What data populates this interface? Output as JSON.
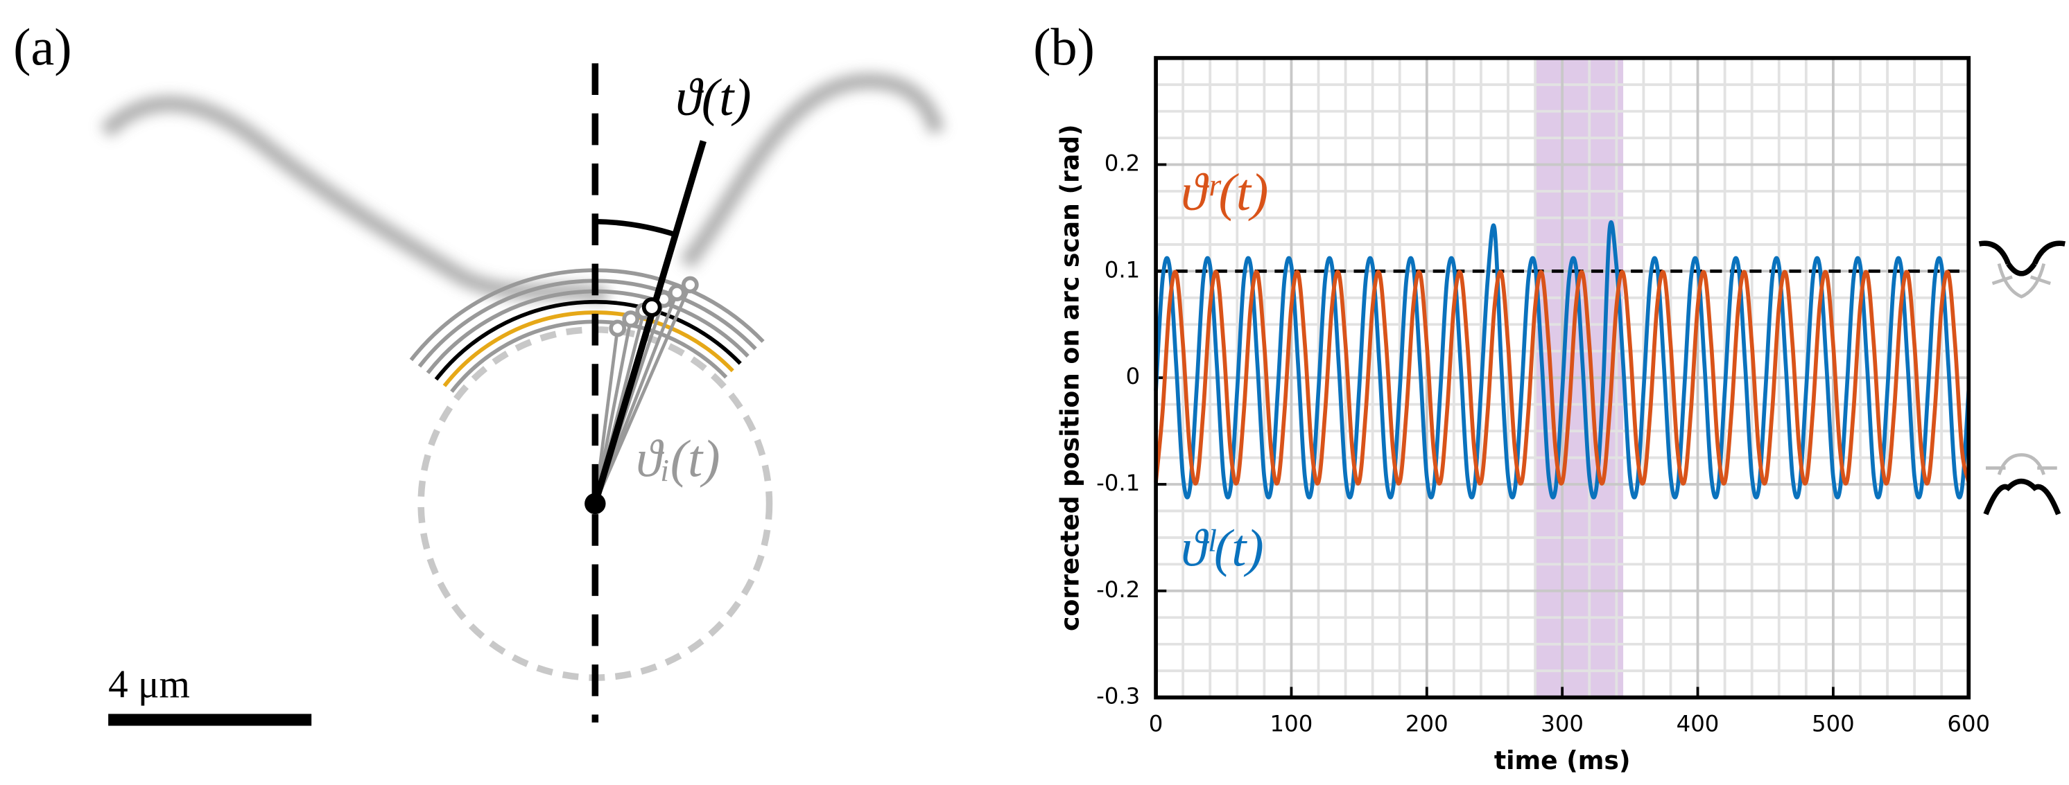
{
  "panel_a": {
    "label": "(a)",
    "angle_label": "ϑ(t)",
    "segment_label": "ϑᵢ(t)",
    "scale_bar": "4 μm"
  },
  "chart_data": {
    "type": "line",
    "panel_label": "(b)",
    "x_label": "time (ms)",
    "y_label": "corrected position on arc scan (rad)",
    "xlim": [
      0,
      600
    ],
    "xticks": [
      0,
      100,
      200,
      300,
      400,
      500,
      600
    ],
    "ylim": [
      -0.3,
      0.3
    ],
    "yticks": [
      -0.3,
      -0.2,
      -0.1,
      0,
      0.1,
      0.2
    ],
    "grid": true,
    "reference_line": 0.1,
    "highlight": [
      280,
      345
    ],
    "highlight_color": "#b07cc6",
    "x": [
      0,
      5,
      10,
      15,
      20,
      25,
      30,
      35,
      40,
      45,
      50,
      55,
      60,
      65,
      70,
      75,
      80,
      85,
      90,
      95,
      100,
      105,
      110,
      115,
      120,
      125,
      130,
      135,
      140,
      145,
      150,
      155,
      160,
      165,
      170,
      175,
      180,
      185,
      190,
      195,
      200,
      205,
      210,
      215,
      220,
      225,
      230,
      235,
      240,
      245,
      250,
      255,
      260,
      265,
      270,
      275,
      280,
      285,
      290,
      295,
      300,
      305,
      310,
      315,
      320,
      325,
      330,
      335,
      340,
      345,
      350,
      355,
      360,
      365,
      370,
      375,
      380,
      385,
      390,
      395,
      400,
      405,
      410,
      415,
      420,
      425,
      430,
      435,
      440,
      445,
      450,
      455,
      460,
      465,
      470,
      475,
      480,
      485,
      490,
      495,
      500,
      505,
      510,
      515,
      520,
      525,
      530,
      535,
      540,
      545,
      550,
      555,
      560,
      565,
      570,
      575,
      580,
      585,
      590,
      595,
      600
    ],
    "series": [
      {
        "name": "ϑˡ(t)",
        "color": "#0a72bd",
        "values": [
          -0.012,
          0.093,
          0.105,
          0.012,
          -0.093,
          -0.105,
          -0.012,
          0.093,
          0.105,
          0.012,
          -0.093,
          -0.105,
          -0.012,
          0.093,
          0.105,
          0.012,
          -0.093,
          -0.105,
          -0.012,
          0.093,
          0.105,
          0.012,
          -0.093,
          -0.105,
          -0.012,
          0.093,
          0.105,
          0.012,
          -0.093,
          -0.105,
          -0.012,
          0.093,
          0.105,
          0.012,
          -0.093,
          -0.105,
          -0.012,
          0.093,
          0.105,
          0.012,
          -0.093,
          -0.105,
          -0.012,
          0.093,
          0.105,
          0.012,
          -0.093,
          -0.105,
          -0.012,
          0.093,
          0.14,
          0.012,
          -0.093,
          -0.105,
          -0.012,
          0.093,
          0.105,
          0.012,
          -0.093,
          -0.105,
          -0.012,
          0.093,
          0.105,
          0.012,
          -0.093,
          -0.105,
          -0.012,
          0.14,
          0.105,
          0.012,
          -0.093,
          -0.105,
          -0.012,
          0.093,
          0.105,
          0.012,
          -0.093,
          -0.105,
          -0.012,
          0.093,
          0.105,
          0.012,
          -0.093,
          -0.105,
          -0.012,
          0.093,
          0.105,
          0.012,
          -0.093,
          -0.105,
          -0.012,
          0.093,
          0.105,
          0.012,
          -0.093,
          -0.105,
          -0.012,
          0.093,
          0.105,
          0.012,
          -0.093,
          -0.105,
          -0.012,
          0.093,
          0.105,
          0.012,
          -0.093,
          -0.105,
          -0.012,
          0.093,
          0.105,
          0.012,
          -0.093,
          -0.105,
          -0.012,
          0.093,
          0.105,
          0.012,
          -0.093,
          -0.105,
          -0.012
        ]
      },
      {
        "name": "ϑʳ(t)",
        "color": "#d95319",
        "values": [
          -0.098,
          -0.031,
          0.067,
          0.098,
          0.031,
          -0.067,
          -0.098,
          -0.031,
          0.067,
          0.098,
          0.031,
          -0.067,
          -0.098,
          -0.031,
          0.067,
          0.098,
          0.031,
          -0.067,
          -0.098,
          -0.031,
          0.067,
          0.098,
          0.031,
          -0.067,
          -0.098,
          -0.031,
          0.067,
          0.098,
          0.031,
          -0.067,
          -0.098,
          -0.031,
          0.067,
          0.098,
          0.031,
          -0.067,
          -0.098,
          -0.031,
          0.067,
          0.098,
          0.031,
          -0.067,
          -0.098,
          -0.031,
          0.067,
          0.098,
          0.031,
          -0.067,
          -0.098,
          -0.031,
          0.067,
          0.098,
          0.031,
          -0.067,
          -0.098,
          -0.031,
          0.067,
          0.098,
          0.031,
          -0.067,
          -0.098,
          -0.031,
          0.067,
          0.098,
          0.031,
          -0.067,
          -0.098,
          -0.031,
          0.067,
          0.098,
          0.031,
          -0.067,
          -0.098,
          -0.031,
          0.067,
          0.098,
          0.031,
          -0.067,
          -0.098,
          -0.031,
          0.067,
          0.098,
          0.031,
          -0.067,
          -0.098,
          -0.031,
          0.067,
          0.098,
          0.031,
          -0.067,
          -0.098,
          -0.031,
          0.067,
          0.098,
          0.031,
          -0.067,
          -0.098,
          -0.031,
          0.067,
          0.098,
          0.031,
          -0.067,
          -0.098,
          -0.031,
          0.067,
          0.098,
          0.031,
          -0.067,
          -0.098,
          -0.031,
          0.067,
          0.098,
          0.031,
          -0.067,
          -0.098,
          -0.031,
          0.067,
          0.098,
          0.031,
          -0.067,
          -0.098
        ]
      }
    ]
  }
}
